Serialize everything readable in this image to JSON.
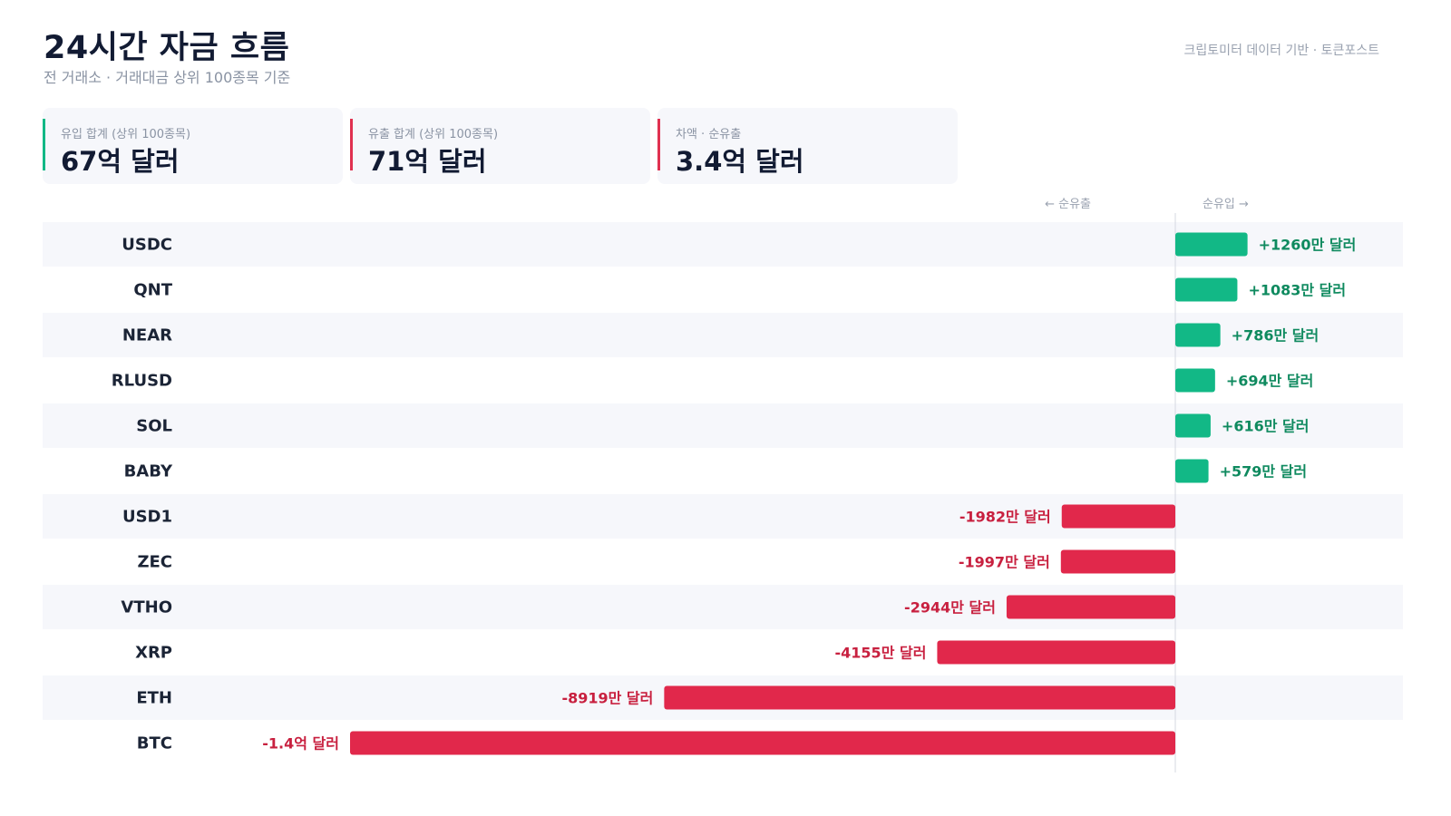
{
  "header": {
    "title": "24시간 자금 흐름",
    "subtitle": "전 거래소 · 거래대금 상위 100종목 기준",
    "source": "크립토미터 데이터 기반 · 토큰포스트"
  },
  "summary": [
    {
      "label": "유입 합계 (상위 100종목)",
      "value": "67억 달러",
      "accent": "#12b886"
    },
    {
      "label": "유출 합계 (상위 100종목)",
      "value": "71억 달러",
      "accent": "#e03150"
    },
    {
      "label": "차액 · 순유출",
      "value": "3.4억 달러",
      "accent": "#e03150"
    }
  ],
  "axis": {
    "outflow_label": "← 순유출",
    "inflow_label": "순유입 →"
  },
  "colors": {
    "inflow": "#12b886",
    "outflow": "#e1284b",
    "inflow_text": "#0f8a5f",
    "outflow_text": "#c8203f",
    "stripe": "#f6f7fb"
  },
  "chart_data": {
    "type": "bar",
    "orientation": "horizontal",
    "unit": "만 달러",
    "categories": [
      "USDC",
      "QNT",
      "NEAR",
      "RLUSD",
      "SOL",
      "BABY",
      "USD1",
      "ZEC",
      "VTHO",
      "XRP",
      "ETH",
      "BTC"
    ],
    "values": [
      1260,
      1083,
      786,
      694,
      616,
      579,
      -1982,
      -1997,
      -2944,
      -4155,
      -8919,
      -14400
    ],
    "value_labels": [
      "+1260만 달러",
      "+1083만 달러",
      "+786만 달러",
      "+694만 달러",
      "+616만 달러",
      "+579만 달러",
      "-1982만 달러",
      "-1997만 달러",
      "-2944만 달러",
      "-4155만 달러",
      "-8919만 달러",
      "-1.4억 달러"
    ]
  }
}
